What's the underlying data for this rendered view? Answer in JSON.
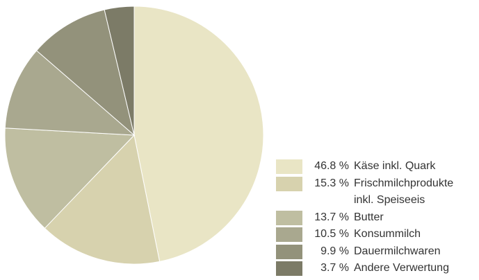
{
  "chart_data": {
    "type": "pie",
    "categories": [
      "Käse inkl. Quark",
      "Frischmilchprodukte inkl. Speiseeis",
      "Butter",
      "Konsummilch",
      "Dauermilchwaren",
      "Andere Verwertung"
    ],
    "values": [
      46.8,
      15.3,
      13.7,
      10.5,
      9.9,
      3.7
    ],
    "value_labels": [
      "46.8 %",
      "15.3 %",
      "13.7 %",
      "10.5 %",
      "9.9 %",
      "3.7 %"
    ],
    "colors": [
      "#e9e5c5",
      "#d7d2ae",
      "#bfbea1",
      "#a9a88f",
      "#93927b",
      "#7c7b67"
    ]
  }
}
